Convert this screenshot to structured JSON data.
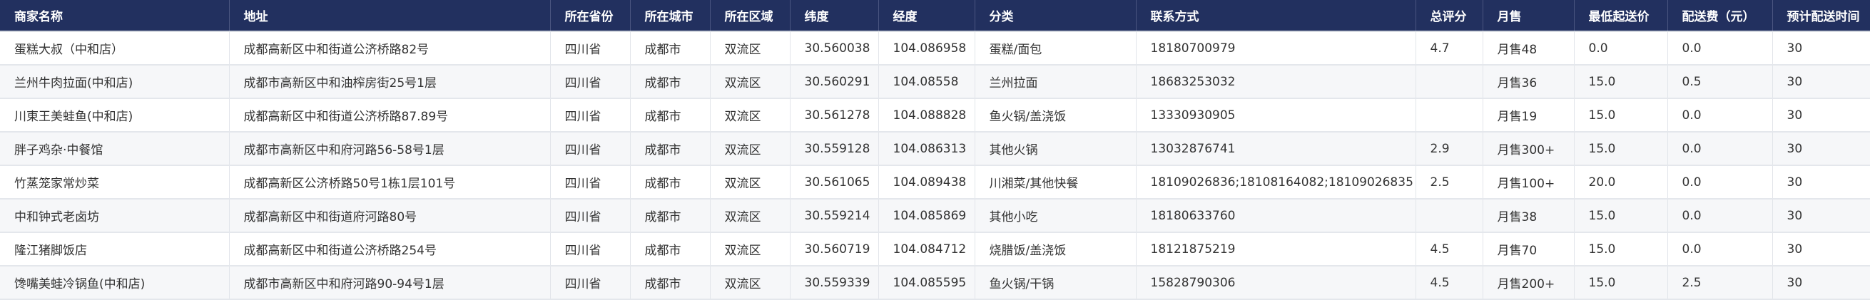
{
  "table": {
    "headers": [
      "商家名称",
      "地址",
      "所在省份",
      "所在城市",
      "所在区域",
      "纬度",
      "经度",
      "分类",
      "联系方式",
      "总评分",
      "月售",
      "最低起送价",
      "配送费（元）",
      "预计配送时间"
    ],
    "rows": [
      [
        "蛋糕大叔（中和店）",
        "成都高新区中和街道公济桥路82号",
        "四川省",
        "成都市",
        "双流区",
        "30.560038",
        "104.086958",
        "蛋糕/面包",
        "18180700979",
        "4.7",
        "月售48",
        "0.0",
        "0.0",
        "30"
      ],
      [
        "兰州牛肉拉面(中和店)",
        "成都市高新区中和油榨房街25号1层",
        "四川省",
        "成都市",
        "双流区",
        "30.560291",
        "104.08558",
        "兰州拉面",
        "18683253032",
        "",
        "月售36",
        "15.0",
        "0.5",
        "30"
      ],
      [
        "川東王美蛙鱼(中和店)",
        "成都高新区中和街道公济桥路87.89号",
        "四川省",
        "成都市",
        "双流区",
        "30.561278",
        "104.088828",
        "鱼火锅/盖浇饭",
        "13330930905",
        "",
        "月售19",
        "15.0",
        "0.0",
        "30"
      ],
      [
        "胖子鸡杂·中餐馆",
        "成都市高新区中和府河路56-58号1层",
        "四川省",
        "成都市",
        "双流区",
        "30.559128",
        "104.086313",
        "其他火锅",
        "13032876741",
        "2.9",
        "月售300+",
        "15.0",
        "0.0",
        "30"
      ],
      [
        "竹蒸笼家常炒菜",
        "成都高新区公济桥路50号1栋1层101号",
        "四川省",
        "成都市",
        "双流区",
        "30.561065",
        "104.089438",
        "川湘菜/其他快餐",
        "18109026836;18108164082;18109026835",
        "2.5",
        "月售100+",
        "20.0",
        "0.0",
        "30"
      ],
      [
        "中和钟式老卤坊",
        "成都高新区中和街道府河路80号",
        "四川省",
        "成都市",
        "双流区",
        "30.559214",
        "104.085869",
        "其他小吃",
        "18180633760",
        "",
        "月售38",
        "15.0",
        "0.0",
        "30"
      ],
      [
        "隆江猪脚饭店",
        "成都高新区中和街道公济桥路254号",
        "四川省",
        "成都市",
        "双流区",
        "30.560719",
        "104.084712",
        "烧腊饭/盖浇饭",
        "18121875219",
        "4.5",
        "月售70",
        "15.0",
        "0.0",
        "30"
      ],
      [
        "馋嘴美蛙冷锅鱼(中和店)",
        "成都市高新区中和府河路90-94号1层",
        "四川省",
        "成都市",
        "双流区",
        "30.559339",
        "104.085595",
        "鱼火锅/干锅",
        "15828790306",
        "4.5",
        "月售200+",
        "15.0",
        "2.5",
        "30"
      ]
    ]
  }
}
